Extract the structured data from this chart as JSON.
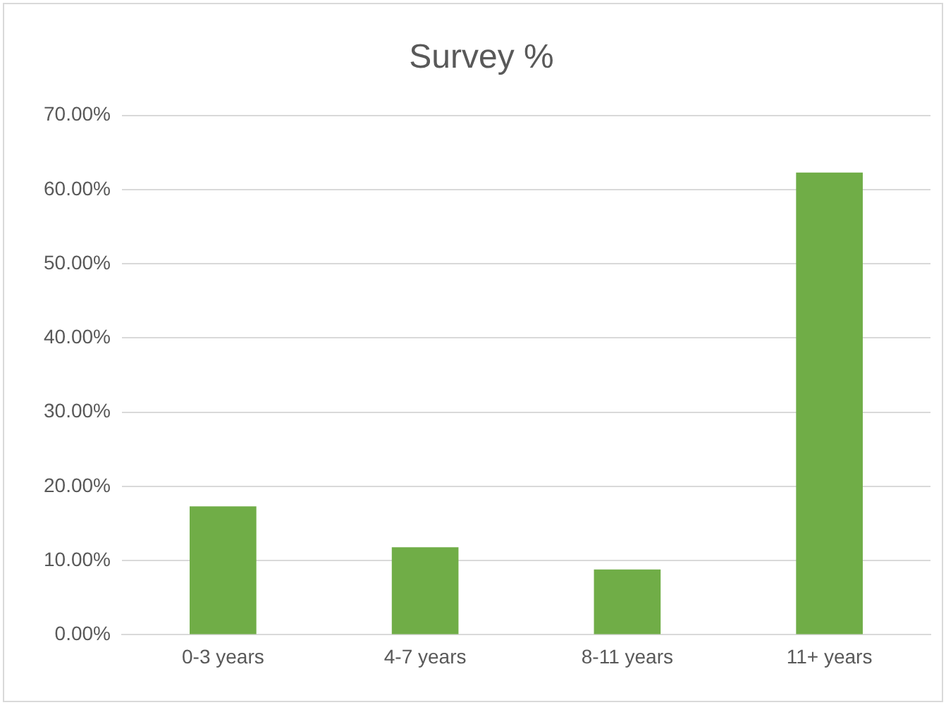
{
  "chart_data": {
    "type": "bar",
    "title": "Survey %",
    "categories": [
      "0-3 years",
      "4-7 years",
      "8-11 years",
      "11+ years"
    ],
    "values": [
      17.3,
      11.8,
      8.8,
      62.3
    ],
    "color": "#70ad47",
    "ylim": [
      0,
      70
    ],
    "yticks": [
      {
        "value": 0,
        "label": "0.00%"
      },
      {
        "value": 10,
        "label": "10.00%"
      },
      {
        "value": 20,
        "label": "20.00%"
      },
      {
        "value": 30,
        "label": "30.00%"
      },
      {
        "value": 40,
        "label": "40.00%"
      },
      {
        "value": 50,
        "label": "50.00%"
      },
      {
        "value": 60,
        "label": "60.00%"
      },
      {
        "value": 70,
        "label": "70.00%"
      }
    ],
    "grid": "y"
  }
}
